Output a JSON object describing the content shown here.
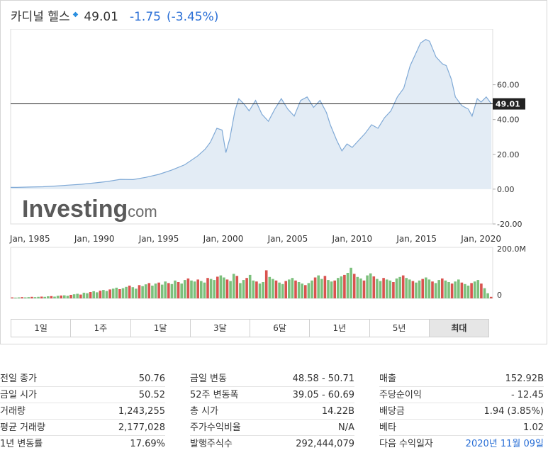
{
  "header": {
    "name": "카디널 헬스",
    "price": "49.01",
    "change": "-1.75",
    "change_pct": "(-3.45%)"
  },
  "chart_data": {
    "type": "area",
    "series": [
      {
        "x": [
          1983.5,
          1984,
          1985,
          1986,
          1987,
          1988,
          1989,
          1990,
          1991,
          1992,
          1993,
          1994,
          1995,
          1996,
          1997,
          1998,
          1998.6,
          1999,
          1999.5,
          1999.9,
          2000.2,
          2000.5,
          2000.9,
          2001.2,
          2001.6,
          2002,
          2002.5,
          2003,
          2003.5,
          2004,
          2004.5,
          2005,
          2005.5,
          2006,
          2006.5,
          2007,
          2007.5,
          2008,
          2008.3,
          2008.8,
          2009.2,
          2009.6,
          2010,
          2010.5,
          2011,
          2011.5,
          2012,
          2012.5,
          2013,
          2013.5,
          2014,
          2014.5,
          2015,
          2015.3,
          2015.7,
          2016,
          2016.5,
          2017,
          2017.3,
          2017.7,
          2018,
          2018.5,
          2019,
          2019.3,
          2019.7,
          2020,
          2020.4,
          2020.8
        ],
        "y": [
          1,
          1,
          1.2,
          1.4,
          1.8,
          2.3,
          2.8,
          3.6,
          4.4,
          5.6,
          5.5,
          6.8,
          8.5,
          11,
          14,
          19,
          23,
          27,
          35,
          34,
          21,
          29,
          45,
          52,
          49,
          45,
          51,
          43,
          39,
          46,
          52,
          46,
          42,
          51,
          53,
          47,
          51,
          44,
          37,
          28,
          22,
          26,
          24,
          28,
          32,
          37,
          35,
          41,
          45,
          53,
          58,
          71,
          79,
          84,
          86,
          85,
          76,
          72,
          71,
          63,
          53,
          48,
          46,
          42,
          52,
          50,
          53,
          49
        ],
        "color": "#7fa9d6"
      }
    ],
    "volume": {
      "type": "bar",
      "ylim": [
        0,
        200
      ],
      "unit": "M",
      "values": [
        4,
        3,
        4,
        5,
        4,
        5,
        6,
        5,
        6,
        7,
        6,
        8,
        9,
        7,
        10,
        11,
        12,
        10,
        14,
        16,
        18,
        15,
        22,
        20,
        25,
        28,
        24,
        30,
        33,
        29,
        35,
        38,
        42,
        36,
        40,
        45,
        50,
        44,
        38,
        52,
        48,
        55,
        60,
        50,
        58,
        62,
        54,
        66,
        60,
        56,
        70,
        64,
        58,
        72,
        78,
        70,
        66,
        74,
        68,
        62,
        80,
        76,
        72,
        85,
        90,
        82,
        74,
        68,
        96,
        88,
        60,
        72,
        80,
        92,
        70,
        66,
        58,
        64,
        110,
        84,
        76,
        70,
        62,
        56,
        68,
        74,
        80,
        70,
        64,
        58,
        52,
        60,
        70,
        82,
        90,
        76,
        88,
        72,
        66,
        70,
        80,
        86,
        92,
        100,
        120,
        96,
        84,
        78,
        70,
        90,
        98,
        86,
        76,
        68,
        80,
        74,
        70,
        64,
        78,
        84,
        90,
        80,
        74,
        68,
        62,
        70,
        76,
        82,
        74,
        66,
        60,
        72,
        78,
        70,
        64,
        58,
        66,
        74,
        62,
        56,
        50,
        60,
        66,
        72,
        58,
        40,
        20,
        6
      ],
      "colors": [
        "#7cc07c",
        "#d9534f"
      ]
    },
    "xlabel_ticks": [
      "Jan, 1985",
      "Jan, 1990",
      "Jan, 1995",
      "Jan, 2000",
      "Jan, 2005",
      "Jan, 2010",
      "Jan, 2015",
      "Jan, 2020"
    ],
    "ytick_labels": [
      "60.00",
      "40.00",
      "20.00",
      "0.00",
      "-20.00"
    ],
    "yticks": [
      60,
      40,
      20,
      0,
      -20
    ],
    "ylim": [
      -20,
      92
    ],
    "xlim": [
      1983.5,
      2020.9
    ],
    "current_value": 49.01,
    "current_label": "49.01",
    "volume_tick_labels": [
      "200.0M",
      "0"
    ]
  },
  "watermark": {
    "brand": "Investing",
    "suffix": ".com"
  },
  "tabs": [
    "1일",
    "1주",
    "1달",
    "3달",
    "6달",
    "1년",
    "5년",
    "최대"
  ],
  "active_tab": "최대",
  "stats": {
    "col1": [
      {
        "label": "전일 종가",
        "value": "50.76"
      },
      {
        "label": "금일 시가",
        "value": "50.52"
      },
      {
        "label": "거래량",
        "value": "1,243,255"
      },
      {
        "label": "평균 거래량",
        "value": "2,177,028"
      },
      {
        "label": "1년 변동률",
        "value": "17.69%"
      }
    ],
    "col2": [
      {
        "label": "금일 변동",
        "value": "48.58 - 50.71"
      },
      {
        "label": "52주 변동폭",
        "value": "39.05 - 60.69"
      },
      {
        "label": "총 시가",
        "value": "14.22B"
      },
      {
        "label": "주가수익비율",
        "value": "N/A"
      },
      {
        "label": "발행주식수",
        "value": "292,444,079"
      }
    ],
    "col3": [
      {
        "label": "매출",
        "value": "152.92B"
      },
      {
        "label": "주당순이익",
        "value": "- 12.45"
      },
      {
        "label": "배당금",
        "value": "1.94 (3.85%)"
      },
      {
        "label": "베타",
        "value": "1.02"
      },
      {
        "label": "다음 수익일자",
        "value": "2020년 11월 09일"
      }
    ]
  }
}
